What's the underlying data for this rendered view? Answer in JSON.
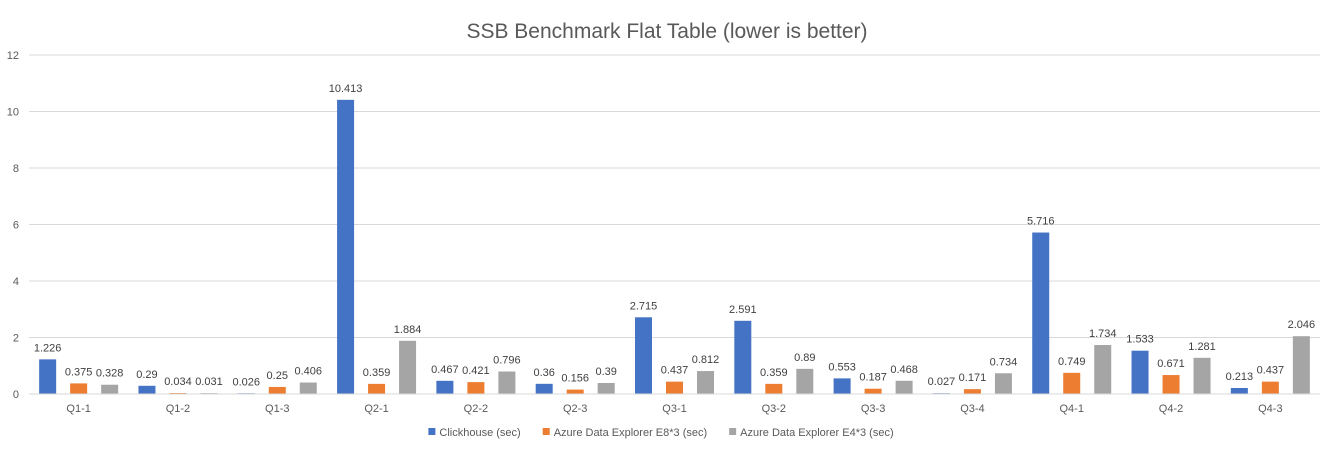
{
  "chart_data": {
    "type": "bar",
    "title": "SSB Benchmark Flat Table (lower is better)",
    "xlabel": "",
    "ylabel": "",
    "ylim": [
      0,
      12
    ],
    "yticks": [
      "0",
      "2",
      "4",
      "6",
      "8",
      "10",
      "12"
    ],
    "grid": true,
    "legend_position": "bottom",
    "categories": [
      "Q1-1",
      "Q1-2",
      "Q1-3",
      "Q2-1",
      "Q2-2",
      "Q2-3",
      "Q3-1",
      "Q3-2",
      "Q3-3",
      "Q3-4",
      "Q4-1",
      "Q4-2",
      "Q4-3"
    ],
    "series": [
      {
        "name": "Clickhouse (sec)",
        "color": "#4472c4",
        "values": [
          1.226,
          0.29,
          0.026,
          10.413,
          0.467,
          0.36,
          2.715,
          2.591,
          0.553,
          0.027,
          5.716,
          1.533,
          0.213
        ],
        "labels": [
          "1.226",
          "0.29",
          "0.026",
          "10.413",
          "0.467",
          "0.36",
          "2.715",
          "2.591",
          "0.553",
          "0.027",
          "5.716",
          "1.533",
          "0.213"
        ]
      },
      {
        "name": "Azure Data Explorer E8*3 (sec)",
        "color": "#ed7d31",
        "values": [
          0.375,
          0.034,
          0.25,
          0.359,
          0.421,
          0.156,
          0.437,
          0.359,
          0.187,
          0.171,
          0.749,
          0.671,
          0.437
        ],
        "labels": [
          "0.375",
          "0.034",
          "0.25",
          "0.359",
          "0.421",
          "0.156",
          "0.437",
          "0.359",
          "0.187",
          "0.171",
          "0.749",
          "0.671",
          "0.437"
        ]
      },
      {
        "name": "Azure Data Explorer E4*3 (sec)",
        "color": "#a5a5a5",
        "values": [
          0.328,
          0.031,
          0.406,
          1.884,
          0.796,
          0.39,
          0.812,
          0.89,
          0.468,
          0.734,
          1.734,
          1.281,
          2.046
        ],
        "labels": [
          "0.328",
          "0.031",
          "0.406",
          "1.884",
          "0.796",
          "0.39",
          "0.812",
          "0.89",
          "0.468",
          "0.734",
          "1.734",
          "1.281",
          "2.046"
        ]
      }
    ]
  }
}
